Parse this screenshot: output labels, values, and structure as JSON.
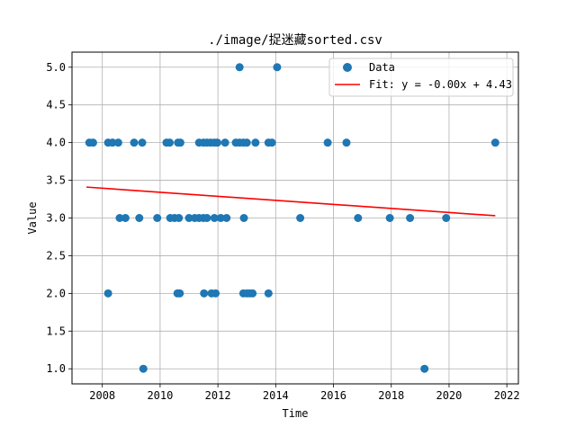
{
  "chart_data": {
    "type": "scatter",
    "title": "./image/捉迷藏sorted.csv",
    "xlabel": "Time",
    "ylabel": "Value",
    "xlim": [
      2006.95,
      2022.4
    ],
    "ylim": [
      0.8,
      5.2
    ],
    "grid": true,
    "legend_position": "top-right",
    "x_ticks": [
      2008,
      2010,
      2012,
      2014,
      2016,
      2018,
      2020,
      2022
    ],
    "x_tick_labels": [
      "2008",
      "2010",
      "2012",
      "2014",
      "2016",
      "2018",
      "2020",
      "2022"
    ],
    "y_ticks": [
      1.0,
      1.5,
      2.0,
      2.5,
      3.0,
      3.5,
      4.0,
      4.5,
      5.0
    ],
    "y_tick_labels": [
      "1.0",
      "1.5",
      "2.0",
      "2.5",
      "3.0",
      "3.5",
      "4.0",
      "4.5",
      "5.0"
    ],
    "colors": {
      "scatter": "#1f77b4",
      "fit": "#ff0000",
      "grid": "#b0b0b0"
    },
    "series": [
      {
        "name": "Data",
        "kind": "scatter",
        "points": [
          [
            2007.55,
            4
          ],
          [
            2007.68,
            4
          ],
          [
            2008.2,
            4
          ],
          [
            2008.35,
            4
          ],
          [
            2008.55,
            4
          ],
          [
            2009.1,
            4
          ],
          [
            2009.38,
            4
          ],
          [
            2010.22,
            4
          ],
          [
            2010.33,
            4
          ],
          [
            2010.62,
            4
          ],
          [
            2010.7,
            4
          ],
          [
            2011.35,
            4
          ],
          [
            2011.5,
            4
          ],
          [
            2011.62,
            4
          ],
          [
            2011.75,
            4
          ],
          [
            2011.88,
            4
          ],
          [
            2011.98,
            4
          ],
          [
            2012.25,
            4
          ],
          [
            2012.62,
            4
          ],
          [
            2012.75,
            4
          ],
          [
            2012.88,
            4
          ],
          [
            2013.0,
            4
          ],
          [
            2013.3,
            4
          ],
          [
            2013.75,
            4
          ],
          [
            2013.87,
            4
          ],
          [
            2015.8,
            4
          ],
          [
            2016.45,
            4
          ],
          [
            2021.6,
            4
          ],
          [
            2012.75,
            5
          ],
          [
            2014.05,
            5
          ],
          [
            2008.6,
            3
          ],
          [
            2008.8,
            3
          ],
          [
            2009.28,
            3
          ],
          [
            2009.9,
            3
          ],
          [
            2010.35,
            3
          ],
          [
            2010.5,
            3
          ],
          [
            2010.65,
            3
          ],
          [
            2011.0,
            3
          ],
          [
            2011.2,
            3
          ],
          [
            2011.35,
            3
          ],
          [
            2011.5,
            3
          ],
          [
            2011.62,
            3
          ],
          [
            2011.88,
            3
          ],
          [
            2012.1,
            3
          ],
          [
            2012.3,
            3
          ],
          [
            2012.9,
            3
          ],
          [
            2014.85,
            3
          ],
          [
            2016.85,
            3
          ],
          [
            2017.95,
            3
          ],
          [
            2018.65,
            3
          ],
          [
            2019.9,
            3
          ],
          [
            2008.2,
            2
          ],
          [
            2010.6,
            2
          ],
          [
            2010.68,
            2
          ],
          [
            2011.52,
            2
          ],
          [
            2011.78,
            2
          ],
          [
            2011.92,
            2
          ],
          [
            2012.88,
            2
          ],
          [
            2013.0,
            2
          ],
          [
            2013.1,
            2
          ],
          [
            2013.2,
            2
          ],
          [
            2013.75,
            2
          ],
          [
            2009.42,
            1
          ],
          [
            2019.15,
            1
          ]
        ]
      },
      {
        "name": "Fit: y = -0.00x + 4.43",
        "kind": "line",
        "points": [
          [
            2007.45,
            3.41
          ],
          [
            2021.6,
            3.03
          ]
        ]
      }
    ]
  }
}
